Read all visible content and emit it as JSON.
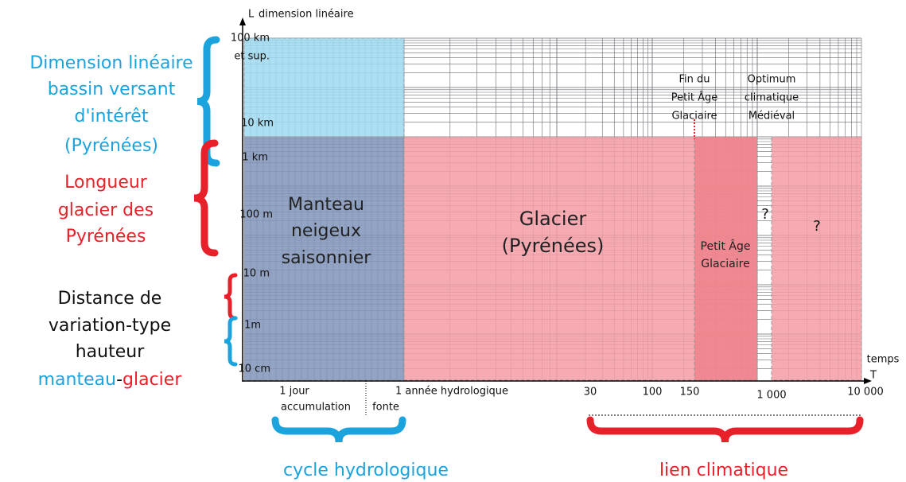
{
  "left_labels": {
    "basin": [
      "Dimension linéaire",
      "bassin versant",
      "d'intérêt",
      "(Pyrénées)"
    ],
    "glacier": [
      "Longueur",
      "glacier des",
      "Pyrénées"
    ],
    "distance": [
      "Distance de",
      "variation-type",
      "hauteur"
    ],
    "distance_last": [
      "manteau",
      "-",
      "glacier"
    ]
  },
  "y_axis": {
    "symbol": "L",
    "title": "dimension linéaire",
    "labels": [
      "100 km",
      "et sup.",
      "10 km",
      "1 km",
      "100 m",
      "10 m",
      "1m",
      "10 cm"
    ]
  },
  "x_axis": {
    "title": "temps",
    "symbol": "T",
    "labels": [
      "1 jour",
      "accumulation",
      "1 année hydrologique",
      "fonte",
      "30",
      "100",
      "150",
      "1 000",
      "10 000"
    ]
  },
  "regions": {
    "snow": [
      "Manteau",
      "neigeux",
      "saisonnier"
    ],
    "glacier": [
      "Glacier",
      "(Pyrénées)"
    ],
    "lia": [
      "Petit Âge",
      "Glaciaire"
    ]
  },
  "annotations": {
    "end_lia": [
      "Fin du",
      "Petit Âge",
      "Glaciaire"
    ],
    "optimum": [
      "Optimum",
      "climatique",
      "Médiéval"
    ],
    "question": [
      "?",
      "?"
    ]
  },
  "bottom_labels": [
    "cycle hydrologique",
    "lien climatique"
  ]
}
